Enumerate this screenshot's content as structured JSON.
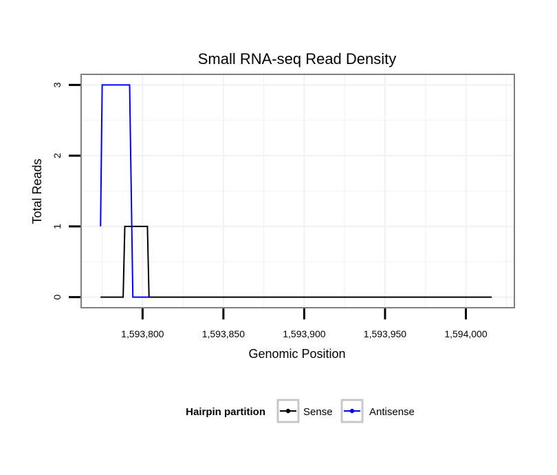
{
  "chart_data": {
    "type": "line",
    "title": "Small RNA-seq Read Density",
    "xlabel": "Genomic Position",
    "ylabel": "Total Reads",
    "xlim": [
      1593762,
      1594030
    ],
    "ylim": [
      -0.15,
      3.15
    ],
    "x_ticks": [
      1593800,
      1593850,
      1593900,
      1593950,
      1594000
    ],
    "x_tick_labels": [
      "1,593,800",
      "1,593,850",
      "1,593,900",
      "1,593,950",
      "1,594,000"
    ],
    "y_ticks": [
      0,
      1,
      2,
      3
    ],
    "y_tick_labels": [
      "0",
      "1",
      "2",
      "3"
    ],
    "grid": true,
    "legend": {
      "title": "Hairpin partition",
      "position": "bottom"
    },
    "series": [
      {
        "name": "Sense",
        "color": "#000000",
        "x": [
          1593774,
          1593788,
          1593789,
          1593803,
          1593804,
          1594016
        ],
        "y": [
          0,
          0,
          1,
          1,
          0,
          0
        ]
      },
      {
        "name": "Antisense",
        "color": "#0000ff",
        "x": [
          1593774,
          1593775,
          1593792,
          1593794,
          1593804
        ],
        "y": [
          1,
          3,
          3,
          0,
          0
        ]
      }
    ]
  }
}
